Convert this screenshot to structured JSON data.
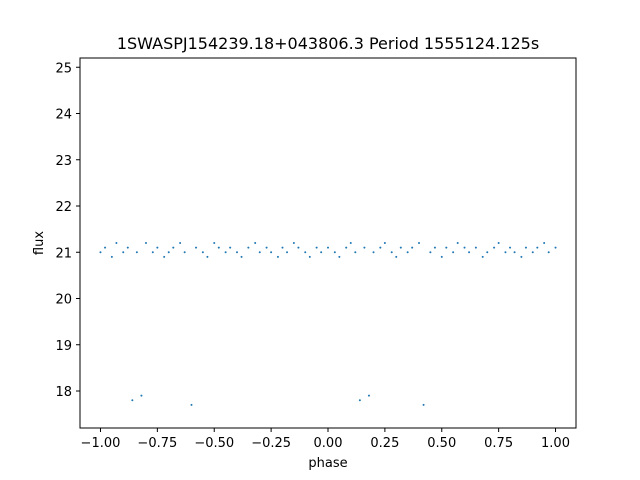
{
  "chart_data": {
    "type": "scatter",
    "title": "1SWASPJ154239.18+043806.3 Period 1555124.125s",
    "xlabel": "phase",
    "ylabel": "flux",
    "xlim": [
      -1.09,
      1.09
    ],
    "ylim": [
      17.2,
      25.2
    ],
    "xticks": [
      -1.0,
      -0.75,
      -0.5,
      -0.25,
      0.0,
      0.25,
      0.5,
      0.75,
      1.0
    ],
    "xtick_labels": [
      "−1.00",
      "−0.75",
      "−0.50",
      "−0.25",
      "0.00",
      "0.25",
      "0.50",
      "0.75",
      "1.00"
    ],
    "yticks": [
      18,
      19,
      20,
      21,
      22,
      23,
      24,
      25
    ],
    "ytick_labels": [
      "18",
      "19",
      "20",
      "21",
      "22",
      "23",
      "24",
      "25"
    ],
    "grid": false,
    "marker_color": "#1f77b4",
    "series": [
      {
        "x": [
          -1.0,
          -0.98,
          -0.95,
          -0.93,
          -0.9,
          -0.88,
          -0.86,
          -0.84,
          -0.82,
          -0.8,
          -0.77,
          -0.75,
          -0.72,
          -0.7,
          -0.68,
          -0.65,
          -0.63,
          -0.6,
          -0.58,
          -0.55,
          -0.53,
          -0.5,
          -0.48,
          -0.45,
          -0.43,
          -0.4,
          -0.38,
          -0.35,
          -0.32,
          -0.3,
          -0.27,
          -0.25,
          -0.22,
          -0.2,
          -0.18,
          -0.15,
          -0.13,
          -0.1,
          -0.08,
          -0.05,
          -0.03,
          0.0,
          0.03,
          0.05,
          0.08,
          0.1,
          0.12,
          0.14,
          0.16,
          0.18,
          0.2,
          0.23,
          0.25,
          0.28,
          0.3,
          0.32,
          0.35,
          0.37,
          0.4,
          0.42,
          0.45,
          0.47,
          0.5,
          0.52,
          0.55,
          0.57,
          0.6,
          0.62,
          0.65,
          0.68,
          0.7,
          0.73,
          0.75,
          0.78,
          0.8,
          0.82,
          0.85,
          0.87,
          0.9,
          0.92,
          0.95,
          0.97,
          1.0
        ],
        "y": [
          21.0,
          21.1,
          20.9,
          21.2,
          21.0,
          21.1,
          17.8,
          21.0,
          17.9,
          21.2,
          21.0,
          21.1,
          20.9,
          21.0,
          21.1,
          21.2,
          21.0,
          17.7,
          21.1,
          21.0,
          20.9,
          21.2,
          21.1,
          21.0,
          21.1,
          21.0,
          20.9,
          21.1,
          21.2,
          21.0,
          21.1,
          21.0,
          20.9,
          21.1,
          21.0,
          21.2,
          21.1,
          21.0,
          20.9,
          21.1,
          21.0,
          21.1,
          21.0,
          20.9,
          21.1,
          21.2,
          21.0,
          17.8,
          21.1,
          17.9,
          21.0,
          21.1,
          21.2,
          21.0,
          20.9,
          21.1,
          21.0,
          21.1,
          21.2,
          17.7,
          21.0,
          21.1,
          20.9,
          21.1,
          21.0,
          21.2,
          21.1,
          21.0,
          21.1,
          20.9,
          21.0,
          21.1,
          21.2,
          21.0,
          21.1,
          21.0,
          20.9,
          21.1,
          21.0,
          21.1,
          21.2,
          21.0,
          21.1
        ]
      }
    ]
  }
}
